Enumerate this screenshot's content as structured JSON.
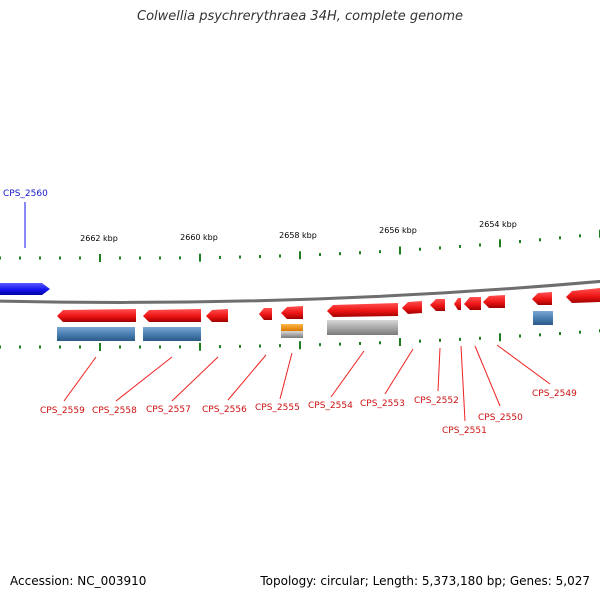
{
  "title": "Colwellia psychrerythraea 34H, complete genome",
  "accession_text": "Accession: NC_003910",
  "summary_text": "Topology: circular; Length: 5,373,180 bp; Genes: 5,027",
  "colors": {
    "forward_gene": "#1515ee",
    "reverse_gene": "#ee1515",
    "gene_label_forward": "#1515cc",
    "gene_label_reverse": "#cc1111",
    "leader_line": "#ee2222",
    "tick": "#1e7d1e",
    "backbone": "#6e6e6e",
    "feature_blue": "#4a7fb2",
    "feature_gray": "#aaaaaa",
    "feature_orange": "#f0920f"
  },
  "ruler": {
    "labels": [
      "2662 kbp",
      "2660 kbp",
      "2658 kbp",
      "2656 kbp",
      "2654 kbp"
    ]
  },
  "genes": [
    {
      "id": "CPS_2560",
      "strand": "forward"
    },
    {
      "id": "CPS_2559",
      "strand": "reverse"
    },
    {
      "id": "CPS_2558",
      "strand": "reverse"
    },
    {
      "id": "CPS_2557",
      "strand": "reverse"
    },
    {
      "id": "CPS_2556",
      "strand": "reverse"
    },
    {
      "id": "CPS_2555",
      "strand": "reverse"
    },
    {
      "id": "CPS_2554",
      "strand": "reverse"
    },
    {
      "id": "CPS_2553",
      "strand": "reverse"
    },
    {
      "id": "CPS_2552",
      "strand": "reverse"
    },
    {
      "id": "CPS_2551",
      "strand": "reverse"
    },
    {
      "id": "CPS_2550",
      "strand": "reverse"
    },
    {
      "id": "CPS_2549",
      "strand": "reverse"
    }
  ]
}
